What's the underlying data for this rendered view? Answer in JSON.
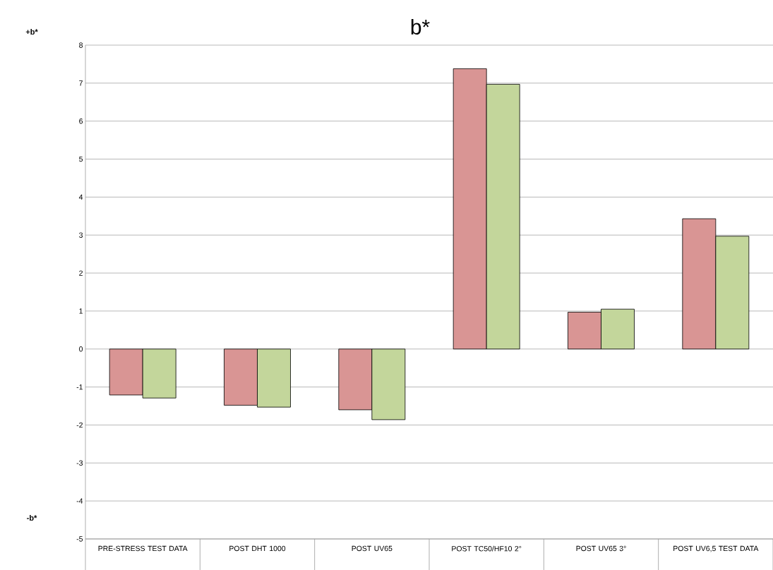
{
  "chart_data": {
    "type": "bar",
    "title": "b*",
    "categories": [
      "PRE-STRESS TEST DATA",
      "POST DHT 1000",
      "POST UV65",
      "POST TC50/HF10 2°",
      "POST UV65 3°",
      "POST UV6,5 TEST DATA"
    ],
    "series": [
      {
        "color": "#d99594",
        "values": [
          -1.21,
          -1.48,
          -1.6,
          7.38,
          0.97,
          3.43
        ]
      },
      {
        "color": "#c3d69b",
        "values": [
          -1.29,
          -1.53,
          -1.86,
          6.97,
          1.05,
          2.97
        ]
      }
    ],
    "ylim": [
      -5,
      8
    ],
    "yticks": [
      -5,
      -4,
      -3,
      -2,
      -1,
      0,
      1,
      2,
      3,
      4,
      5,
      6,
      7,
      8
    ],
    "grid": "y",
    "annotations": [
      "+b*",
      "-b*"
    ]
  }
}
